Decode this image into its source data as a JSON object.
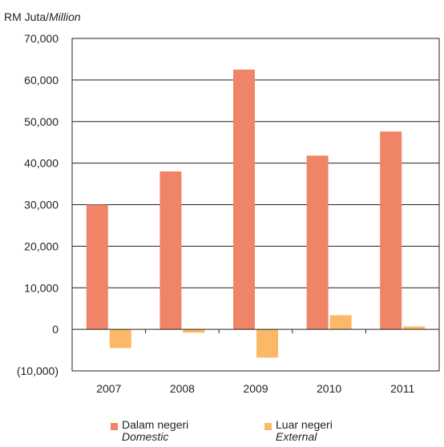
{
  "chart_data": {
    "type": "bar",
    "unit_label": "RM Juta/",
    "unit_label_en": "Million",
    "categories": [
      "2007",
      "2008",
      "2009",
      "2010",
      "2011"
    ],
    "series": [
      {
        "name": "Dalam negeri",
        "name_en": "Domestic",
        "color": "#f08466",
        "values": [
          30000,
          38000,
          62500,
          41800,
          47600
        ]
      },
      {
        "name": "Luar negeri",
        "name_en": "External",
        "color": "#fbb866",
        "values": [
          -4500,
          -800,
          -6800,
          3400,
          700
        ]
      }
    ],
    "y_ticks": [
      "70,000",
      "60,000",
      "50,000",
      "40,000",
      "30,000",
      "20,000",
      "10,000",
      "0",
      "(10,000)"
    ],
    "ylim": [
      -10000,
      70000
    ],
    "grid": true,
    "legend_position": "bottom"
  }
}
